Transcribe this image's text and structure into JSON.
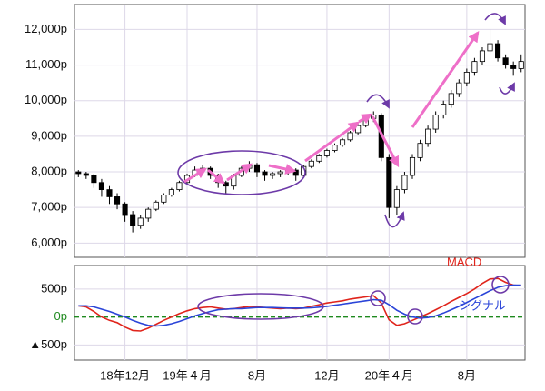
{
  "chart_data": [
    {
      "type": "candlestick",
      "ylim": [
        5600,
        12700
      ],
      "yticks": [
        {
          "value": 6000,
          "label": "6,000p"
        },
        {
          "value": 7000,
          "label": "7,000p"
        },
        {
          "value": 8000,
          "label": "8,000p"
        },
        {
          "value": 9000,
          "label": "9,000p"
        },
        {
          "value": 10000,
          "label": "10,000p"
        },
        {
          "value": 11000,
          "label": "11,000p"
        },
        {
          "value": 12000,
          "label": "12,000p"
        }
      ],
      "grid": true,
      "up_color": "#ffffff",
      "down_color": "#000000",
      "open": [
        8000,
        7950,
        7900,
        7700,
        7500,
        7300,
        7100,
        6800,
        6500,
        6700,
        6950,
        7150,
        7350,
        7500,
        7700,
        7900,
        8050,
        8100,
        7900,
        7700,
        7600,
        7900,
        8100,
        8200,
        8000,
        7900,
        7950,
        8000,
        8050,
        7900,
        8150,
        8300,
        8450,
        8600,
        8750,
        8900,
        9100,
        9300,
        9500,
        9600,
        8400,
        7000,
        7500,
        7900,
        8400,
        8800,
        9200,
        9600,
        9900,
        10200,
        10500,
        10800,
        11100,
        11400,
        11600,
        11200,
        11000,
        10900
      ],
      "high": [
        8050,
        8000,
        7950,
        7800,
        7600,
        7400,
        7150,
        6900,
        6800,
        7000,
        7200,
        7400,
        7550,
        7750,
        7950,
        8150,
        8200,
        8150,
        7950,
        7750,
        7950,
        8150,
        8300,
        8250,
        8050,
        8000,
        8050,
        8100,
        8100,
        8200,
        8350,
        8500,
        8650,
        8800,
        8950,
        9150,
        9350,
        9550,
        9700,
        9650,
        8500,
        7600,
        8000,
        8500,
        8900,
        9300,
        9700,
        10000,
        10300,
        10600,
        10900,
        11200,
        11500,
        12000,
        11700,
        11300,
        11100,
        11300
      ],
      "low": [
        7850,
        7800,
        7550,
        7300,
        7100,
        6950,
        6600,
        6300,
        6400,
        6600,
        6900,
        7100,
        7300,
        7450,
        7650,
        7850,
        7950,
        7800,
        7550,
        7400,
        7500,
        7850,
        8000,
        7850,
        7750,
        7800,
        7850,
        7900,
        7750,
        7850,
        8100,
        8250,
        8400,
        8550,
        8700,
        8850,
        9050,
        9250,
        9400,
        8300,
        6700,
        6800,
        7400,
        7800,
        8300,
        8700,
        9100,
        9500,
        9800,
        10100,
        10400,
        10700,
        11000,
        11300,
        11100,
        10900,
        10700,
        10800
      ],
      "close": [
        7950,
        7900,
        7700,
        7500,
        7300,
        7100,
        6800,
        6500,
        6700,
        6950,
        7150,
        7350,
        7500,
        7700,
        7900,
        8050,
        8100,
        7900,
        7700,
        7600,
        7900,
        8100,
        8200,
        8000,
        7900,
        7950,
        8000,
        8050,
        7900,
        8150,
        8300,
        8450,
        8600,
        8750,
        8900,
        9100,
        9300,
        9500,
        9600,
        8400,
        7000,
        7500,
        7900,
        8400,
        8800,
        9200,
        9600,
        9900,
        10200,
        10500,
        10800,
        11100,
        11400,
        11600,
        11200,
        11000,
        10900,
        11100
      ]
    },
    {
      "type": "line",
      "ylim": [
        -770,
        920
      ],
      "yticks": [
        {
          "value": 500,
          "label": "500p"
        },
        {
          "value": 0,
          "label": "0p"
        },
        {
          "value": -500,
          "label": "▲500p"
        }
      ],
      "grid": true,
      "categories": [
        null,
        null,
        null,
        null,
        null,
        null,
        "18年12月",
        null,
        null,
        null,
        null,
        null,
        null,
        null,
        "19年４月",
        null,
        null,
        null,
        null,
        null,
        null,
        null,
        null,
        "8月",
        null,
        null,
        null,
        null,
        null,
        null,
        null,
        null,
        "12月",
        null,
        null,
        null,
        null,
        null,
        null,
        null,
        "20年４月",
        null,
        null,
        null,
        null,
        null,
        null,
        null,
        null,
        null,
        "8月",
        null,
        null,
        null,
        null,
        null,
        null,
        null
      ],
      "series": [
        {
          "name": "MACD",
          "color": "#e0241b",
          "values": [
            200,
            180,
            100,
            0,
            -60,
            -100,
            -180,
            -240,
            -250,
            -200,
            -130,
            -60,
            0,
            60,
            110,
            150,
            170,
            180,
            160,
            140,
            150,
            170,
            190,
            180,
            170,
            160,
            150,
            160,
            150,
            160,
            190,
            220,
            250,
            270,
            290,
            320,
            340,
            360,
            380,
            250,
            -50,
            -150,
            -120,
            -60,
            0,
            60,
            130,
            200,
            280,
            350,
            420,
            500,
            600,
            680,
            690,
            620,
            570,
            560
          ]
        },
        {
          "name": "シグナル",
          "color": "#2a44d8",
          "values": [
            200,
            200,
            180,
            140,
            100,
            50,
            0,
            -60,
            -110,
            -150,
            -160,
            -150,
            -120,
            -80,
            -30,
            20,
            60,
            100,
            130,
            140,
            150,
            150,
            160,
            170,
            170,
            170,
            165,
            160,
            160,
            160,
            165,
            175,
            190,
            210,
            230,
            250,
            270,
            290,
            310,
            300,
            220,
            120,
            50,
            0,
            -20,
            -10,
            20,
            70,
            130,
            190,
            260,
            330,
            400,
            470,
            530,
            560,
            570,
            570
          ]
        }
      ]
    }
  ]
}
